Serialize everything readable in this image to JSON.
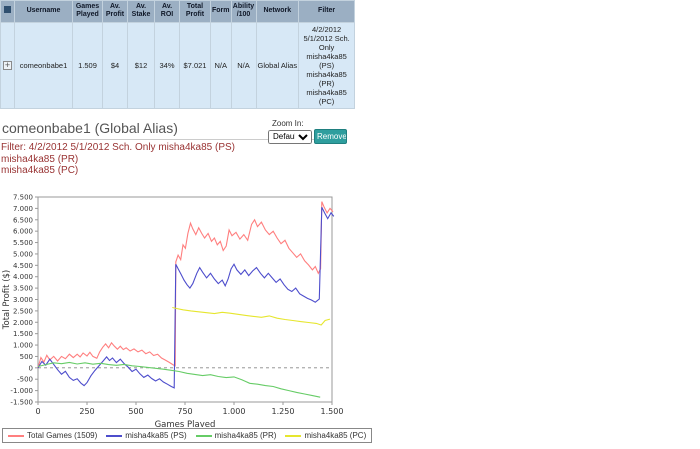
{
  "table": {
    "headers": [
      "Username",
      "Games Played",
      "Av. Profit",
      "Av. Stake",
      "Av. ROI",
      "Total Profit",
      "Form",
      "Ability /100",
      "Network",
      "Filter"
    ],
    "row": {
      "username": "comeonbabe1",
      "games_played": "1.509",
      "av_profit": "$4",
      "av_stake": "$12",
      "av_roi": "34%",
      "total_profit": "$7.021",
      "form": "N/A",
      "ability": "N/A",
      "network": "Global Alias",
      "filter": "4/2/2012 5/1/2012 Sch. Only misha4ka85 (PS) misha4ka85 (PR) misha4ka85 (PC)"
    }
  },
  "profile": {
    "title": "comeonbabe1 (Global Alias)",
    "zoom_label": "Zoom In:",
    "zoom_value": "Default",
    "remove_button": "Remove",
    "filter_line1": "Filter: 4/2/2012 5/1/2012 Sch. Only misha4ka85 (PS)",
    "filter_line2": "misha4ka85 (PR)",
    "filter_line3": "misha4ka85 (PC)"
  },
  "colors": {
    "accent_teal": "#2e9e9e",
    "link_blue": "#3366bb",
    "filter_maroon": "#993333",
    "table_header_bg": "#9bafc3",
    "table_row_bg": "#d7e8f6"
  },
  "chart_data": {
    "type": "line",
    "title": "",
    "xlabel": "Games Played",
    "ylabel": "Total Profit ($)",
    "xlim": [
      0,
      1500
    ],
    "ylim": [
      -1500,
      7500
    ],
    "x_ticks": [
      0,
      250,
      500,
      750,
      1000,
      1250,
      1500
    ],
    "y_tick_step": 500,
    "grid": "off",
    "zero_line": "dashed",
    "legend_position": "bottom-left",
    "series": [
      {
        "name": "Total Games (1509)",
        "color": "#ff7f7f",
        "points": [
          [
            0,
            0
          ],
          [
            15,
            450
          ],
          [
            30,
            250
          ],
          [
            45,
            550
          ],
          [
            60,
            350
          ],
          [
            80,
            500
          ],
          [
            100,
            300
          ],
          [
            120,
            500
          ],
          [
            140,
            400
          ],
          [
            160,
            600
          ],
          [
            180,
            450
          ],
          [
            200,
            600
          ],
          [
            215,
            480
          ],
          [
            230,
            650
          ],
          [
            250,
            520
          ],
          [
            265,
            680
          ],
          [
            280,
            500
          ],
          [
            300,
            420
          ],
          [
            315,
            700
          ],
          [
            330,
            900
          ],
          [
            345,
            1050
          ],
          [
            360,
            880
          ],
          [
            375,
            1100
          ],
          [
            390,
            950
          ],
          [
            405,
            820
          ],
          [
            420,
            950
          ],
          [
            435,
            800
          ],
          [
            450,
            880
          ],
          [
            470,
            740
          ],
          [
            490,
            830
          ],
          [
            510,
            700
          ],
          [
            530,
            780
          ],
          [
            550,
            620
          ],
          [
            570,
            700
          ],
          [
            590,
            540
          ],
          [
            610,
            600
          ],
          [
            630,
            430
          ],
          [
            650,
            340
          ],
          [
            670,
            240
          ],
          [
            690,
            130
          ],
          [
            700,
            90
          ],
          [
            703,
            4650
          ],
          [
            715,
            4950
          ],
          [
            728,
            4750
          ],
          [
            740,
            5400
          ],
          [
            752,
            5250
          ],
          [
            765,
            5900
          ],
          [
            778,
            6350
          ],
          [
            790,
            6100
          ],
          [
            805,
            5850
          ],
          [
            820,
            6150
          ],
          [
            835,
            5900
          ],
          [
            850,
            5700
          ],
          [
            868,
            5900
          ],
          [
            885,
            5550
          ],
          [
            900,
            5700
          ],
          [
            915,
            5400
          ],
          [
            930,
            5550
          ],
          [
            945,
            5150
          ],
          [
            960,
            5350
          ],
          [
            975,
            6050
          ],
          [
            990,
            5800
          ],
          [
            1010,
            5950
          ],
          [
            1030,
            5650
          ],
          [
            1050,
            5850
          ],
          [
            1070,
            5600
          ],
          [
            1090,
            6300
          ],
          [
            1105,
            6500
          ],
          [
            1120,
            6200
          ],
          [
            1140,
            6400
          ],
          [
            1160,
            6050
          ],
          [
            1180,
            5850
          ],
          [
            1200,
            6000
          ],
          [
            1220,
            5700
          ],
          [
            1240,
            5450
          ],
          [
            1260,
            5600
          ],
          [
            1280,
            5250
          ],
          [
            1300,
            5050
          ],
          [
            1320,
            4850
          ],
          [
            1340,
            5000
          ],
          [
            1360,
            4700
          ],
          [
            1380,
            4520
          ],
          [
            1400,
            4300
          ],
          [
            1415,
            4450
          ],
          [
            1430,
            4150
          ],
          [
            1442,
            4350
          ],
          [
            1448,
            7300
          ],
          [
            1460,
            7050
          ],
          [
            1475,
            6800
          ],
          [
            1490,
            7000
          ],
          [
            1505,
            6850
          ]
        ]
      },
      {
        "name": "misha4ka85 (PS)",
        "color": "#4d4dcc",
        "points": [
          [
            0,
            0
          ],
          [
            20,
            280
          ],
          [
            40,
            120
          ],
          [
            60,
            380
          ],
          [
            80,
            150
          ],
          [
            100,
            -80
          ],
          [
            120,
            -280
          ],
          [
            140,
            -150
          ],
          [
            160,
            -420
          ],
          [
            180,
            -550
          ],
          [
            200,
            -480
          ],
          [
            220,
            -680
          ],
          [
            235,
            -780
          ],
          [
            250,
            -650
          ],
          [
            270,
            -350
          ],
          [
            290,
            -120
          ],
          [
            310,
            80
          ],
          [
            330,
            280
          ],
          [
            350,
            480
          ],
          [
            365,
            320
          ],
          [
            380,
            430
          ],
          [
            400,
            230
          ],
          [
            420,
            380
          ],
          [
            440,
            180
          ],
          [
            460,
            30
          ],
          [
            480,
            -160
          ],
          [
            500,
            -60
          ],
          [
            520,
            -260
          ],
          [
            540,
            -420
          ],
          [
            560,
            -320
          ],
          [
            580,
            -470
          ],
          [
            600,
            -580
          ],
          [
            620,
            -480
          ],
          [
            640,
            -620
          ],
          [
            660,
            -720
          ],
          [
            680,
            -820
          ],
          [
            695,
            -880
          ],
          [
            703,
            4550
          ],
          [
            715,
            4350
          ],
          [
            730,
            4100
          ],
          [
            745,
            3850
          ],
          [
            760,
            3650
          ],
          [
            775,
            3500
          ],
          [
            790,
            3700
          ],
          [
            810,
            4150
          ],
          [
            825,
            4400
          ],
          [
            840,
            4200
          ],
          [
            860,
            3950
          ],
          [
            880,
            4150
          ],
          [
            900,
            3900
          ],
          [
            920,
            3700
          ],
          [
            940,
            3850
          ],
          [
            955,
            3600
          ],
          [
            970,
            3900
          ],
          [
            985,
            4350
          ],
          [
            1000,
            4550
          ],
          [
            1015,
            4300
          ],
          [
            1035,
            4100
          ],
          [
            1055,
            4300
          ],
          [
            1075,
            4050
          ],
          [
            1095,
            4250
          ],
          [
            1115,
            4400
          ],
          [
            1135,
            4150
          ],
          [
            1155,
            3950
          ],
          [
            1175,
            4150
          ],
          [
            1195,
            3950
          ],
          [
            1215,
            3750
          ],
          [
            1235,
            3900
          ],
          [
            1255,
            3650
          ],
          [
            1275,
            3450
          ],
          [
            1295,
            3350
          ],
          [
            1315,
            3500
          ],
          [
            1335,
            3250
          ],
          [
            1355,
            3150
          ],
          [
            1375,
            3050
          ],
          [
            1395,
            2980
          ],
          [
            1415,
            2880
          ],
          [
            1435,
            3020
          ],
          [
            1448,
            7050
          ],
          [
            1462,
            6800
          ],
          [
            1478,
            6550
          ],
          [
            1495,
            6800
          ],
          [
            1509,
            6650
          ]
        ]
      },
      {
        "name": "misha4ka85 (PR)",
        "color": "#66cc66",
        "points": [
          [
            0,
            60
          ],
          [
            40,
            140
          ],
          [
            80,
            220
          ],
          [
            120,
            180
          ],
          [
            160,
            240
          ],
          [
            200,
            170
          ],
          [
            240,
            220
          ],
          [
            280,
            160
          ],
          [
            320,
            200
          ],
          [
            360,
            140
          ],
          [
            400,
            110
          ],
          [
            440,
            150
          ],
          [
            480,
            90
          ],
          [
            520,
            60
          ],
          [
            560,
            20
          ],
          [
            600,
            -20
          ],
          [
            640,
            -60
          ],
          [
            680,
            -110
          ],
          [
            720,
            -160
          ],
          [
            760,
            -240
          ],
          [
            800,
            -290
          ],
          [
            840,
            -340
          ],
          [
            880,
            -300
          ],
          [
            920,
            -380
          ],
          [
            960,
            -430
          ],
          [
            1000,
            -400
          ],
          [
            1040,
            -520
          ],
          [
            1080,
            -680
          ],
          [
            1120,
            -720
          ],
          [
            1160,
            -780
          ],
          [
            1200,
            -820
          ],
          [
            1240,
            -920
          ],
          [
            1280,
            -1000
          ],
          [
            1320,
            -1080
          ],
          [
            1360,
            -1150
          ],
          [
            1400,
            -1220
          ],
          [
            1440,
            -1290
          ]
        ]
      },
      {
        "name": "misha4ka85 (PC)",
        "color": "#e6e62e",
        "points": [
          [
            685,
            2650
          ],
          [
            710,
            2600
          ],
          [
            740,
            2550
          ],
          [
            780,
            2500
          ],
          [
            820,
            2460
          ],
          [
            860,
            2420
          ],
          [
            900,
            2380
          ],
          [
            940,
            2440
          ],
          [
            980,
            2400
          ],
          [
            1020,
            2350
          ],
          [
            1060,
            2300
          ],
          [
            1100,
            2260
          ],
          [
            1140,
            2220
          ],
          [
            1180,
            2280
          ],
          [
            1220,
            2180
          ],
          [
            1260,
            2120
          ],
          [
            1300,
            2080
          ],
          [
            1340,
            2030
          ],
          [
            1380,
            1990
          ],
          [
            1420,
            1950
          ],
          [
            1445,
            1880
          ],
          [
            1465,
            2080
          ],
          [
            1490,
            2140
          ]
        ]
      }
    ]
  }
}
